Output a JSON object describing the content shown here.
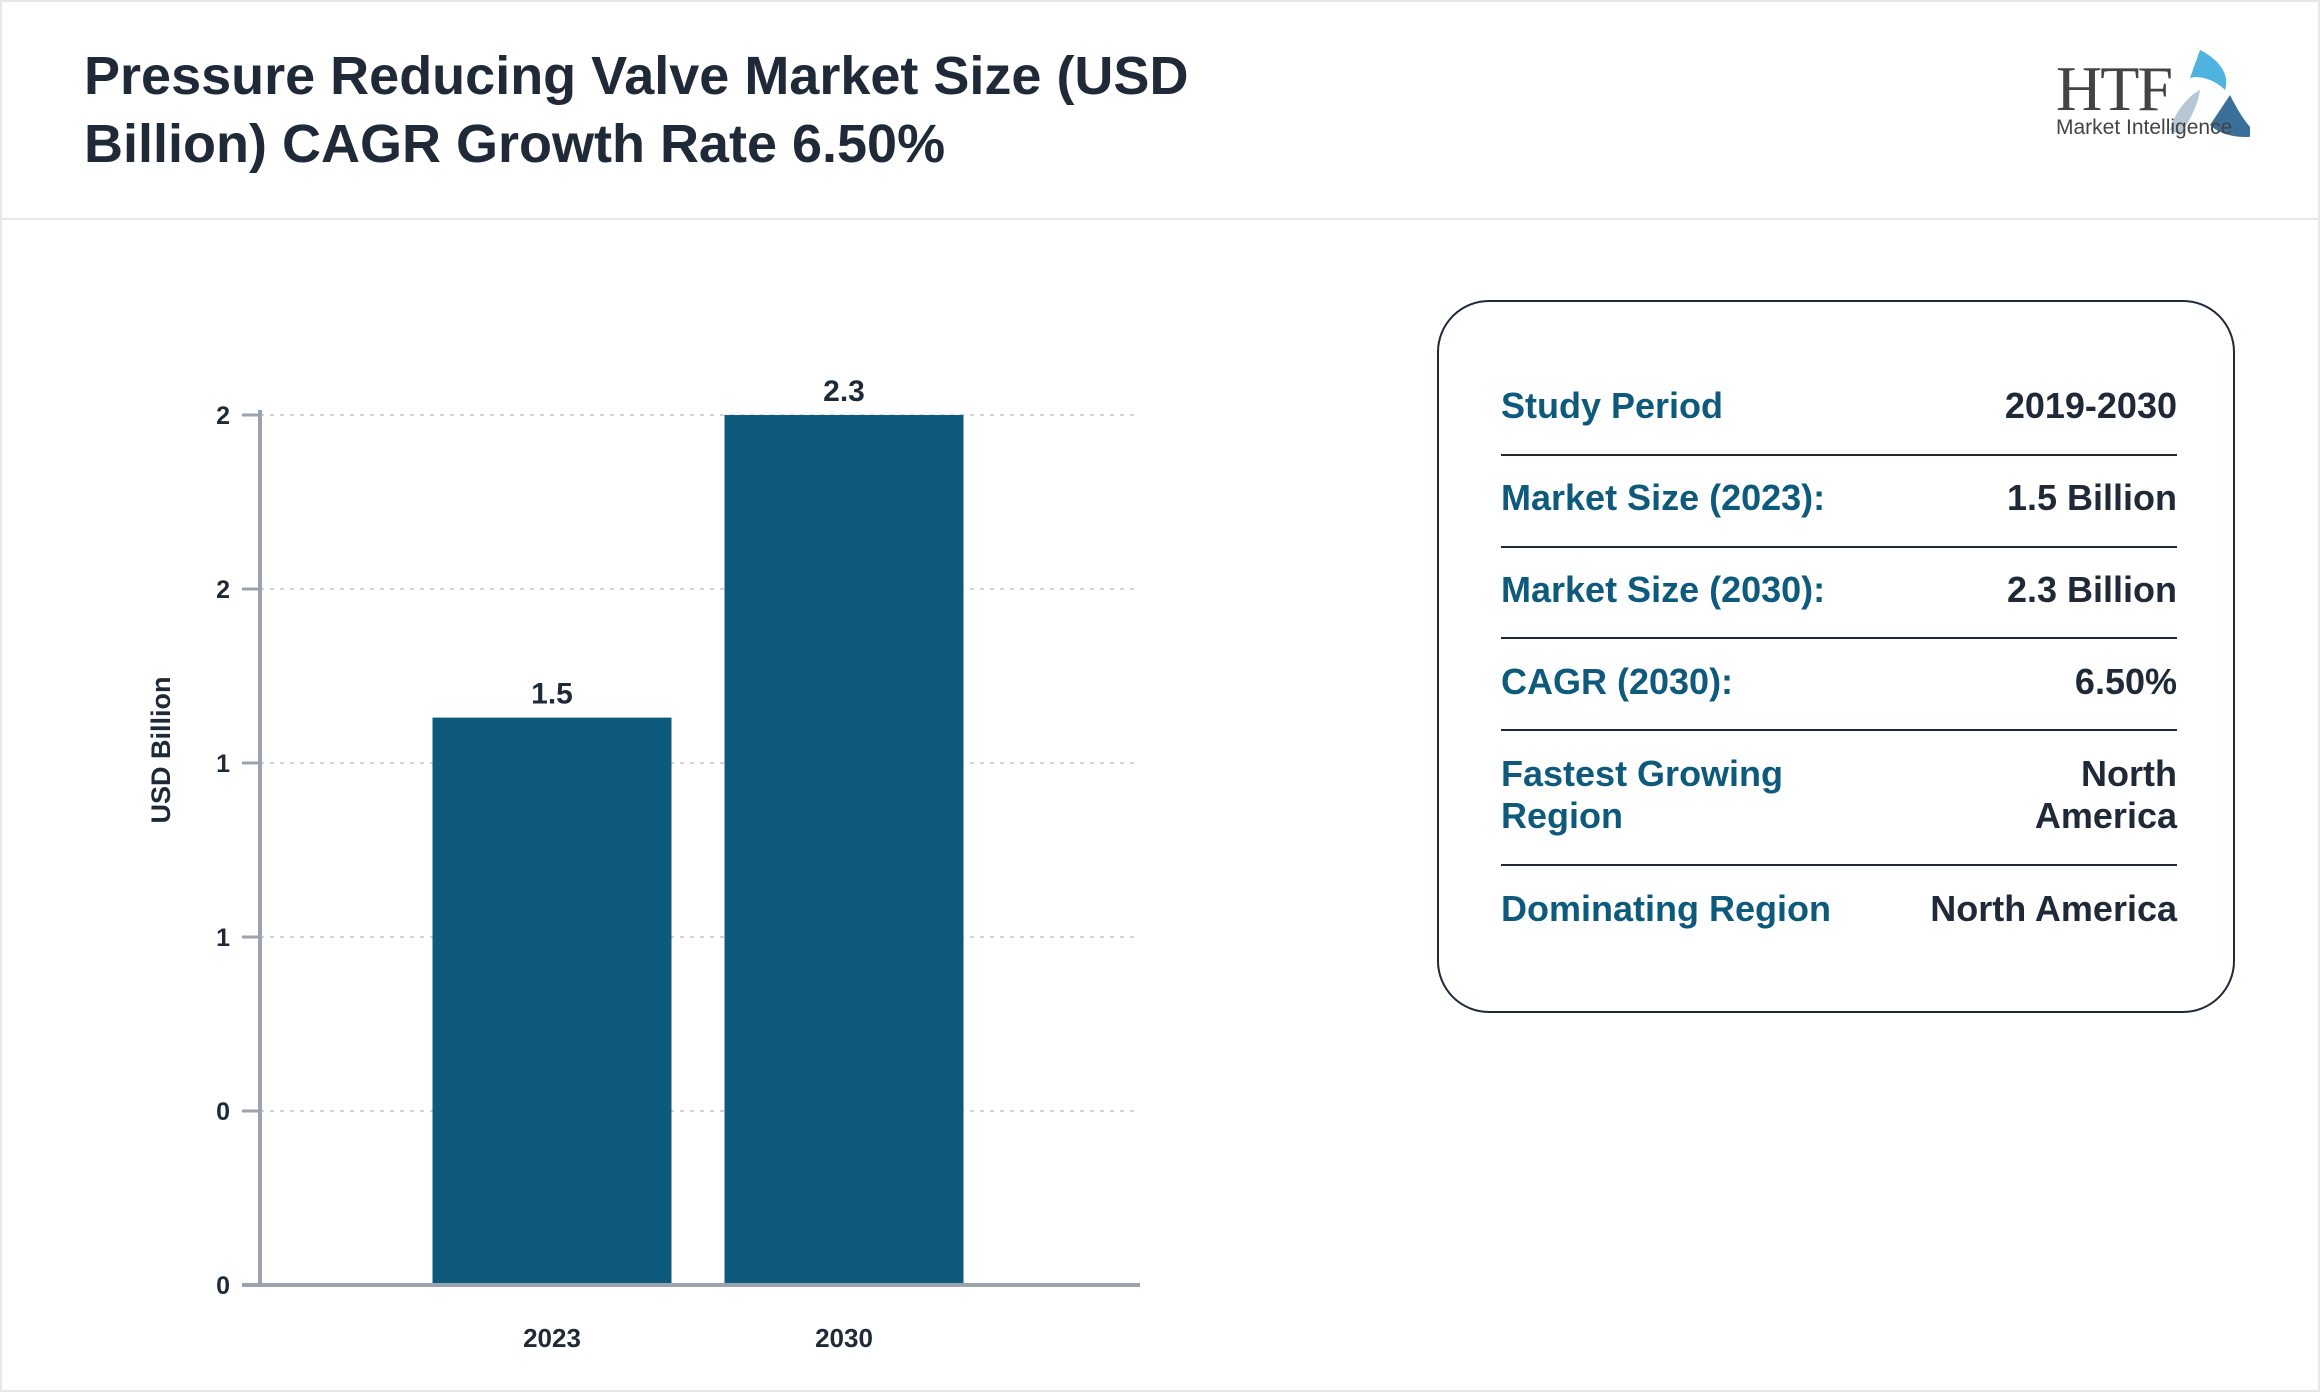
{
  "header": {
    "title": "Pressure Reducing Valve Market Size (USD Billion) CAGR Growth Rate 6.50%",
    "logo_text": "HTF",
    "logo_subtext": "Market Intelligence"
  },
  "colors": {
    "bar": "#0d5a7d",
    "label": "#0d5a7d",
    "text": "#1f2937",
    "axis": "#9ca3af"
  },
  "chart_data": {
    "type": "bar",
    "categories": [
      "2023",
      "2030"
    ],
    "values": [
      1.5,
      2.3
    ],
    "data_labels": [
      "1.5",
      "2.3"
    ],
    "ylabel": "USD Billion",
    "xlabel": "",
    "ylim": [
      0,
      2.3
    ],
    "y_tick_labels": [
      "0",
      "0",
      "1",
      "1",
      "2",
      "2"
    ],
    "grid": true
  },
  "stats": [
    {
      "label": "Study Period",
      "value": "2019-2030"
    },
    {
      "label": "Market Size (2023):",
      "value": "1.5 Billion"
    },
    {
      "label": "Market Size (2030):",
      "value": "2.3 Billion"
    },
    {
      "label": "CAGR (2030):",
      "value": "6.50%"
    },
    {
      "label": "Fastest Growing Region",
      "value": "North America"
    },
    {
      "label": "Dominating Region",
      "value": "North America"
    }
  ]
}
